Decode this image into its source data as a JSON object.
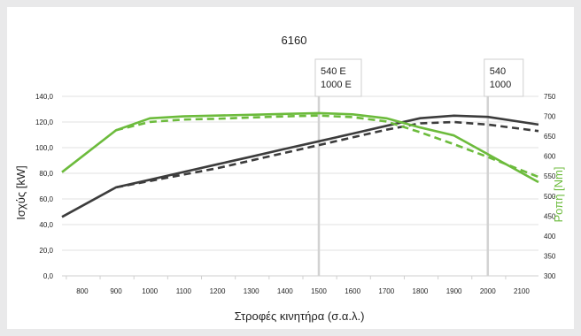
{
  "chart_data": {
    "type": "line",
    "title": "6160",
    "xlabel": "Στροφές κινητήρα (σ.α.λ.)",
    "ylabel_left": "Ισχύς [kW]",
    "ylabel_right": "Ροπή [Nm]",
    "x_ticks": [
      800,
      900,
      1000,
      1100,
      1200,
      1300,
      1400,
      1500,
      1600,
      1700,
      1800,
      1900,
      2000,
      2100
    ],
    "xlim": [
      740,
      2150
    ],
    "ylim_left": [
      0,
      140
    ],
    "y_ticks_left": [
      "0,0",
      "20,0",
      "40,0",
      "60,0",
      "80,0",
      "100,0",
      "120,0",
      "140,0"
    ],
    "ylim_right": [
      300,
      750
    ],
    "y_ticks_right": [
      300,
      350,
      400,
      450,
      500,
      550,
      600,
      650,
      700,
      750
    ],
    "grid": true,
    "series": [
      {
        "axis": "left",
        "style": "solid",
        "color": "#3c3c3c",
        "x": [
          740,
          900,
          1000,
          1100,
          1200,
          1300,
          1400,
          1500,
          1600,
          1700,
          1800,
          1900,
          2000,
          2150
        ],
        "y": [
          46,
          69,
          75,
          81,
          87,
          93,
          99,
          105,
          111,
          117,
          123,
          125,
          124,
          118
        ]
      },
      {
        "axis": "left",
        "style": "dashed",
        "color": "#3c3c3c",
        "x": [
          900,
          1000,
          1100,
          1200,
          1300,
          1400,
          1500,
          1600,
          1700,
          1800,
          1900,
          2000,
          2150
        ],
        "y": [
          69,
          74,
          79,
          84,
          90,
          96,
          102,
          108,
          114,
          119,
          120,
          118,
          113
        ]
      },
      {
        "axis": "right",
        "style": "solid",
        "color": "#6cbb3c",
        "x": [
          740,
          900,
          1000,
          1100,
          1200,
          1300,
          1400,
          1500,
          1600,
          1700,
          1800,
          1900,
          2000,
          2150
        ],
        "y": [
          560,
          665,
          695,
          700,
          702,
          704,
          706,
          708,
          705,
          695,
          672,
          652,
          605,
          535
        ]
      },
      {
        "axis": "right",
        "style": "dashed",
        "color": "#6cbb3c",
        "x": [
          900,
          1000,
          1100,
          1200,
          1300,
          1400,
          1500,
          1600,
          1700,
          1800,
          1900,
          2000,
          2150
        ],
        "y": [
          665,
          686,
          692,
          694,
          697,
          700,
          702,
          698,
          687,
          660,
          630,
          598,
          548
        ]
      }
    ],
    "annotations": [
      {
        "x": 1500,
        "lines": [
          "540 E",
          "1000 E"
        ]
      },
      {
        "x": 2000,
        "lines": [
          "540",
          "1000"
        ]
      }
    ]
  }
}
